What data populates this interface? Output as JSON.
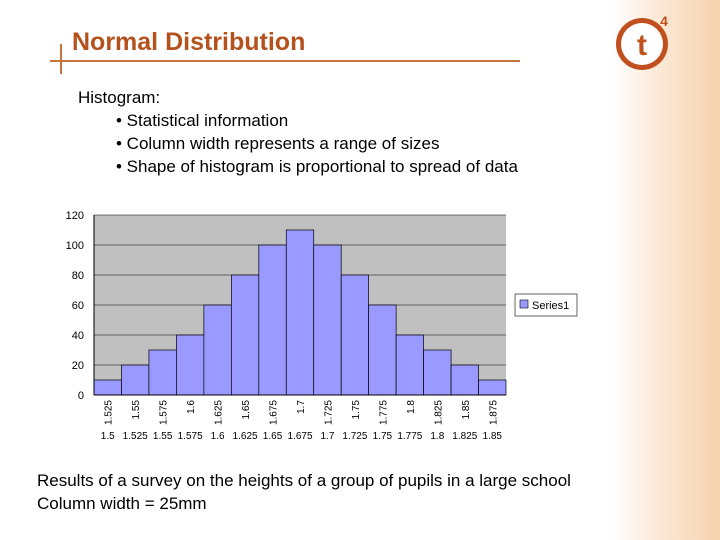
{
  "header": {
    "title": "Normal Distribution",
    "logo_text": "t",
    "logo_superscript": "4"
  },
  "intro": {
    "heading": "Histogram:",
    "bullets": [
      "• Statistical information",
      "• Column width represents a range of sizes",
      "• Shape of histogram is proportional to spread of data"
    ]
  },
  "colors": {
    "title": "#b5511d",
    "accent": "#c8753c",
    "bar": "#9999ff",
    "plot_bg": "#c0c0c0"
  },
  "chart_data": {
    "type": "bar",
    "categories": [
      "1.525",
      "1.55",
      "1.575",
      "1.6",
      "1.625",
      "1.65",
      "1.675",
      "1.7",
      "1.725",
      "1.75",
      "1.775",
      "1.8",
      "1.825",
      "1.85",
      "1.875"
    ],
    "secondary_labels": [
      "1.5",
      "1.525",
      "1.55",
      "1.575",
      "1.6",
      "1.625",
      "1.65",
      "1.675",
      "1.7",
      "1.725",
      "1.75",
      "1.775",
      "1.8",
      "1.825",
      "1.85"
    ],
    "series": [
      {
        "name": "Series1",
        "values": [
          10,
          20,
          30,
          40,
          60,
          80,
          100,
          110,
          100,
          80,
          60,
          40,
          30,
          20,
          10
        ]
      }
    ],
    "yticks": [
      "0",
      "20",
      "40",
      "60",
      "80",
      "100",
      "120"
    ],
    "ylim": [
      0,
      120
    ],
    "grid": true,
    "legend_position": "right"
  },
  "caption": {
    "line1": "Results of a survey on the heights of a group of pupils in a large school",
    "line2": "Column width = 25mm"
  }
}
